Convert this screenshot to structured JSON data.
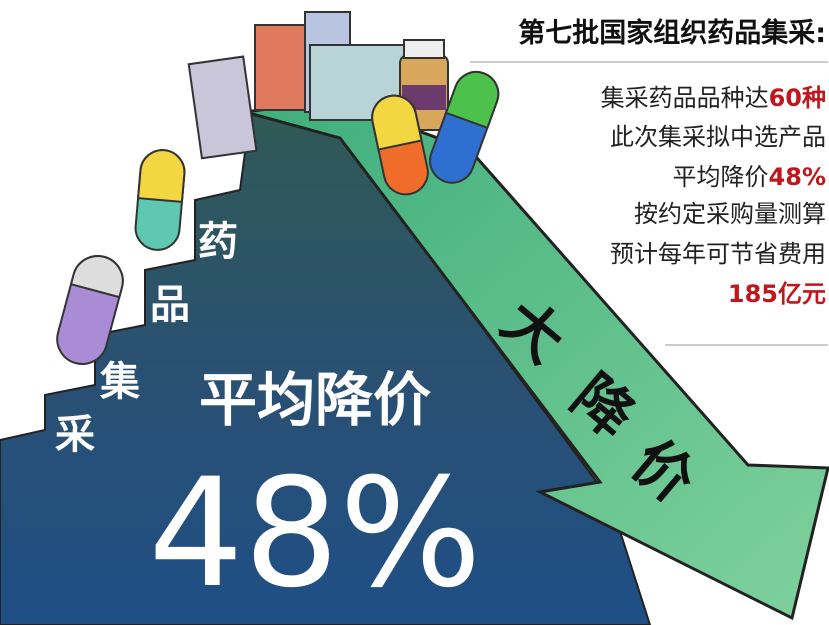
{
  "title": "第七批国家组织药品集采:",
  "facts": [
    {
      "text": "集采药品品种达",
      "highlight": "60种"
    },
    {
      "text": "此次集采拟中选产品"
    },
    {
      "text": "平均降价",
      "highlight": "48%"
    },
    {
      "text": "按约定采购量测算"
    },
    {
      "text": "预计每年可节省费用"
    },
    {
      "highlight": "185亿元"
    }
  ],
  "stairs": [
    "采",
    "集",
    "品",
    "药"
  ],
  "headline": "平均降价",
  "big_number": "48%",
  "arrow_label": [
    "大",
    "降",
    "价"
  ]
}
